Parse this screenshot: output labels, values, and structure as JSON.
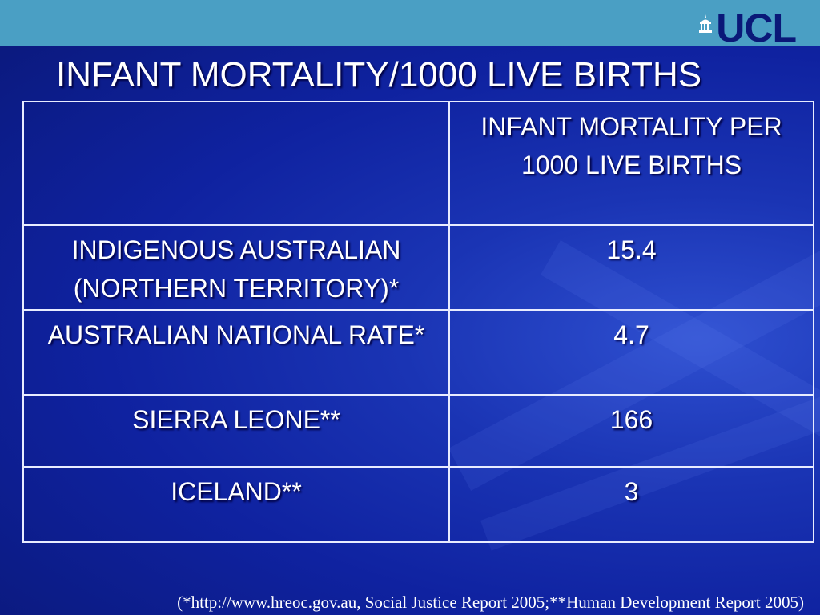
{
  "header": {
    "logo_text": "UCL",
    "logo_mark_icon": "portico-icon",
    "bar_color": "#4a9fc4"
  },
  "slide": {
    "title": "INFANT MORTALITY/1000 LIVE BIRTHS",
    "background_color": "#0f22a0"
  },
  "table": {
    "header": {
      "col1": "",
      "col2": "INFANT MORTALITY PER 1000 LIVE BIRTHS"
    },
    "rows": [
      {
        "label": "INDIGENOUS AUSTRALIAN (NORTHERN TERRITORY)*",
        "value": "15.4"
      },
      {
        "label": "AUSTRALIAN NATIONAL RATE*",
        "value": "4.7"
      },
      {
        "label": "SIERRA LEONE**",
        "value": "166"
      },
      {
        "label": "ICELAND**",
        "value": "3"
      }
    ]
  },
  "footnote": "(*http://www.hreoc.gov.au, Social Justice Report 2005;**Human Development Report 2005)"
}
